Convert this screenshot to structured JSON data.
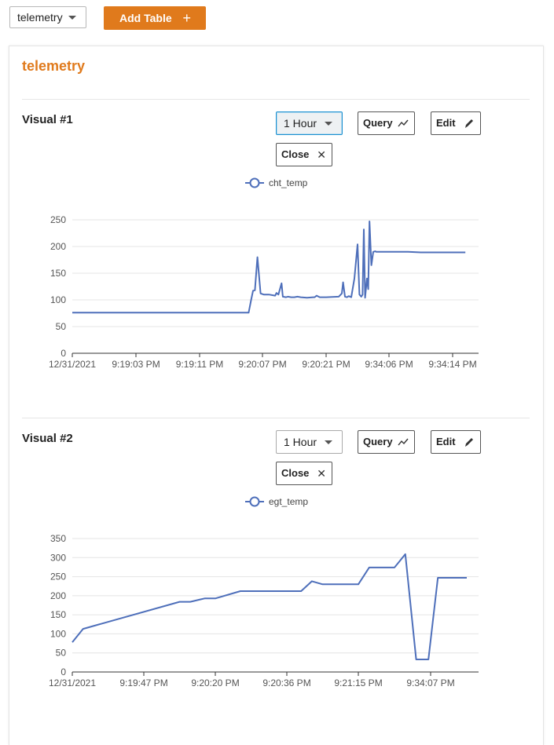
{
  "toolbar": {
    "table_select_value": "telemetry",
    "add_table_label": "Add Table",
    "add_table_icon": "plus-icon"
  },
  "panel": {
    "title": "telemetry"
  },
  "colors": {
    "accent": "#e07a1c",
    "series": "#4e6fba",
    "grid": "#e4e4e4",
    "axis": "#333333"
  },
  "visuals": [
    {
      "title": "Visual #1",
      "range_label": "1 Hour",
      "query_label": "Query",
      "edit_label": "Edit",
      "close_label": "Close",
      "legend_label": "cht_temp"
    },
    {
      "title": "Visual #2",
      "range_label": "1 Hour",
      "query_label": "Query",
      "edit_label": "Edit",
      "close_label": "Close",
      "legend_label": "egt_temp"
    }
  ],
  "chart_data": [
    {
      "type": "line",
      "x_tick_labels": [
        "12/31/2021",
        "9:19:03 PM",
        "9:19:11 PM",
        "9:20:07 PM",
        "9:20:21 PM",
        "9:34:06 PM",
        "9:34:14 PM"
      ],
      "ylim": [
        0,
        250
      ],
      "y_ticks": [
        0,
        50,
        100,
        150,
        200,
        250
      ],
      "grid": true,
      "legend": "top-center",
      "series": [
        {
          "name": "cht_temp",
          "x": [
            0,
            0.3,
            0.6,
            1.0,
            1.5,
            2.0,
            2.5,
            2.75,
            2.78,
            2.82,
            2.85,
            2.88,
            2.92,
            2.97,
            3.02,
            3.1,
            3.2,
            3.22,
            3.25,
            3.3,
            3.32,
            3.37,
            3.4,
            3.45,
            3.5,
            3.55,
            3.6,
            3.7,
            3.8,
            3.82,
            3.85,
            3.9,
            4.0,
            4.2,
            4.25,
            4.27,
            4.3,
            4.33,
            4.36,
            4.4,
            4.45,
            4.5,
            4.53,
            4.56,
            4.58,
            4.6,
            4.62,
            4.65,
            4.67,
            4.69,
            4.72,
            4.75,
            4.78,
            4.8,
            4.82,
            4.85,
            4.88,
            5.0,
            5.1,
            5.3,
            5.5,
            5.7,
            5.9,
            6.1,
            6.2
          ],
          "y": [
            76,
            76,
            76,
            76,
            76,
            76,
            76,
            76,
            76,
            100,
            117,
            118,
            180,
            112,
            110,
            110,
            108,
            113,
            110,
            131,
            106,
            105,
            106,
            105,
            105,
            106,
            105,
            104,
            105,
            105,
            108,
            105,
            105,
            106,
            112,
            133,
            106,
            105,
            107,
            105,
            140,
            204,
            110,
            106,
            110,
            232,
            104,
            140,
            120,
            247,
            165,
            190,
            191,
            190,
            190,
            190,
            190,
            190,
            190,
            190,
            189,
            189,
            189,
            189,
            189
          ]
        }
      ]
    },
    {
      "type": "line",
      "x_tick_labels": [
        "12/31/2021",
        "9:19:47 PM",
        "9:20:20 PM",
        "9:20:36 PM",
        "9:21:15 PM",
        "9:34:07 PM"
      ],
      "ylim": [
        0,
        350
      ],
      "y_ticks": [
        0,
        50,
        100,
        150,
        200,
        250,
        300,
        350
      ],
      "grid": true,
      "legend": "top-center",
      "series": [
        {
          "name": "egt_temp",
          "x": [
            0,
            0.15,
            1.5,
            1.65,
            1.85,
            2.0,
            2.35,
            2.65,
            3.2,
            3.35,
            3.5,
            3.85,
            4.0,
            4.15,
            4.5,
            4.65,
            4.8,
            4.97,
            5.1,
            5.5
          ],
          "y": [
            78,
            113,
            184,
            184,
            193,
            193,
            212,
            212,
            212,
            238,
            230,
            230,
            230,
            274,
            274,
            309,
            33,
            33,
            247,
            247
          ]
        }
      ]
    }
  ]
}
